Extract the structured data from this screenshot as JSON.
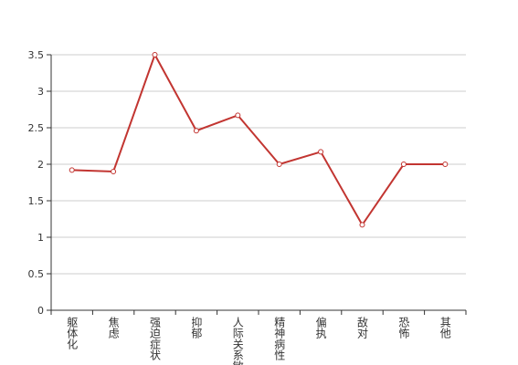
{
  "chart_data": {
    "type": "line",
    "categories": [
      "躯体化",
      "焦虑",
      "强迫症状",
      "抑郁",
      "人际关系敏感",
      "精神病性",
      "偏执",
      "敌对",
      "恐怖",
      "其他"
    ],
    "values": [
      1.92,
      1.9,
      3.5,
      2.46,
      2.67,
      2.0,
      2.17,
      1.17,
      2.0,
      2.0
    ],
    "color": "#c23531",
    "ylim": [
      0,
      3.5
    ],
    "yticks": [
      0,
      0.5,
      1,
      1.5,
      2,
      2.5,
      3,
      3.5
    ],
    "grid": true
  }
}
